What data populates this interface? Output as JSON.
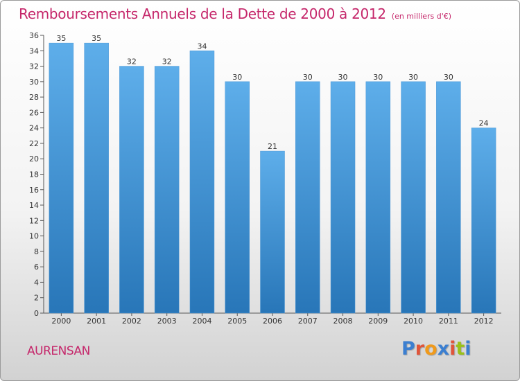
{
  "header": {
    "title": "Remboursements Annuels de la Dette de 2000 à 2012",
    "unit": "(en milliers d'€)"
  },
  "footer": {
    "commune": "AURENSAN",
    "logo": "Proxiti"
  },
  "colors": {
    "title": "#c5266a",
    "bar_light": "#5aaae6",
    "bar_dark": "#2a7cbe",
    "logo_letters": [
      "#3b7fd1",
      "#e0553a",
      "#f09a1b",
      "#3b7fd1",
      "#e0553a",
      "#9ac11a",
      "#3b7fd1"
    ]
  },
  "chart_data": {
    "type": "bar",
    "title": "Remboursements Annuels de la Dette de 2000 à 2012",
    "subtitle": "(en milliers d'€)",
    "categories": [
      "2000",
      "2001",
      "2002",
      "2003",
      "2004",
      "2005",
      "2006",
      "2007",
      "2008",
      "2009",
      "2010",
      "2011",
      "2012"
    ],
    "values": [
      35,
      35,
      32,
      32,
      34,
      30,
      21,
      30,
      30,
      30,
      30,
      30,
      24
    ],
    "data_labels": [
      "35",
      "35",
      "32",
      "32",
      "34",
      "30",
      "21",
      "30",
      "30",
      "30",
      "30",
      "30",
      "24"
    ],
    "ylim": [
      0,
      36
    ],
    "yticks": [
      0,
      2,
      4,
      6,
      8,
      10,
      12,
      14,
      16,
      18,
      20,
      22,
      24,
      26,
      28,
      30,
      32,
      34,
      36
    ],
    "grid": false,
    "legend": "none"
  }
}
